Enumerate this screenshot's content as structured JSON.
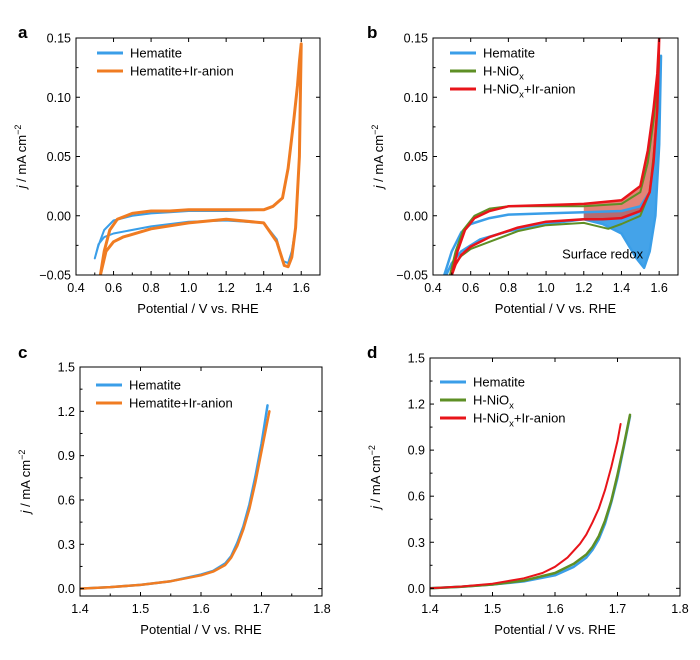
{
  "colors": {
    "hematite": "#3a9ee8",
    "ir": "#f07c22",
    "nio": "#5e8f25",
    "niox_ir": "#e8141a",
    "fill_blue": "#3a9ee8",
    "fill_red": "#d95a4a"
  },
  "chart_data": [
    {
      "panel": "a",
      "type": "line",
      "xlabel": "Potential / V vs. RHE",
      "ylabel_j": "j",
      "ylabel_rest": " / mA cm",
      "ylabel_sup": "−2",
      "xlim": [
        0.4,
        1.7
      ],
      "ylim": [
        -0.05,
        0.15
      ],
      "xticks": [
        "0.4",
        "0.6",
        "0.8",
        "1.0",
        "1.2",
        "1.4",
        "1.6"
      ],
      "yticks": [
        "−0.05",
        "0.00",
        "0.05",
        "0.10",
        "0.15"
      ],
      "legend": [
        {
          "name": "Hematite",
          "sub": "",
          "suffix": ""
        },
        {
          "name": "Hematite+Ir-anion",
          "sub": "",
          "suffix": ""
        }
      ],
      "series": [
        {
          "name": "Hematite",
          "color_key": "hematite",
          "width": 2,
          "x": [
            0.5,
            0.52,
            0.55,
            0.6,
            0.7,
            0.8,
            0.9,
            1.0,
            1.2,
            1.4,
            1.45,
            1.5,
            1.53,
            1.56,
            1.58,
            1.59,
            1.6,
            1.59,
            1.57,
            1.55,
            1.53,
            1.5,
            1.47,
            1.4,
            1.2,
            1.0,
            0.8,
            0.6,
            0.55,
            0.52,
            0.5
          ],
          "y": [
            -0.036,
            -0.025,
            -0.012,
            -0.004,
            0.0,
            0.002,
            0.003,
            0.004,
            0.004,
            0.005,
            0.008,
            0.015,
            0.04,
            0.08,
            0.11,
            0.13,
            0.14,
            0.05,
            -0.01,
            -0.03,
            -0.04,
            -0.038,
            -0.02,
            -0.006,
            -0.004,
            -0.005,
            -0.009,
            -0.015,
            -0.018,
            -0.024,
            -0.036
          ]
        },
        {
          "name": "Hematite+Ir-anion",
          "color_key": "ir",
          "width": 3,
          "x": [
            0.53,
            0.55,
            0.58,
            0.62,
            0.7,
            0.8,
            0.9,
            1.0,
            1.2,
            1.4,
            1.45,
            1.5,
            1.53,
            1.56,
            1.58,
            1.59,
            1.6,
            1.59,
            1.57,
            1.55,
            1.53,
            1.51,
            1.47,
            1.4,
            1.2,
            1.0,
            0.8,
            0.65,
            0.6,
            0.56,
            0.53
          ],
          "y": [
            -0.05,
            -0.03,
            -0.012,
            -0.003,
            0.002,
            0.004,
            0.004,
            0.005,
            0.005,
            0.005,
            0.008,
            0.015,
            0.04,
            0.08,
            0.11,
            0.13,
            0.145,
            0.05,
            -0.01,
            -0.035,
            -0.043,
            -0.042,
            -0.022,
            -0.006,
            -0.003,
            -0.006,
            -0.011,
            -0.018,
            -0.022,
            -0.03,
            -0.05
          ]
        }
      ]
    },
    {
      "panel": "b",
      "type": "line",
      "xlabel": "Potential / V vs. RHE",
      "ylabel_j": "j",
      "ylabel_rest": " / mA cm",
      "ylabel_sup": "−2",
      "xlim": [
        0.4,
        1.7
      ],
      "ylim": [
        -0.05,
        0.15
      ],
      "xticks": [
        "0.4",
        "0.6",
        "0.8",
        "1.0",
        "1.2",
        "1.4",
        "1.6"
      ],
      "yticks": [
        "−0.05",
        "0.00",
        "0.05",
        "0.10",
        "0.15"
      ],
      "annotation": "Surface redox",
      "legend": [
        {
          "name": "Hematite",
          "sub": "",
          "suffix": ""
        },
        {
          "name": "H-NiO",
          "sub": "x",
          "suffix": ""
        },
        {
          "name": "H-NiO",
          "sub": "x",
          "suffix": "+Ir-anion"
        }
      ],
      "series": [
        {
          "name": "Hematite",
          "color_key": "hematite",
          "width": 2.5,
          "x": [
            0.46,
            0.5,
            0.55,
            0.6,
            0.7,
            0.8,
            1.0,
            1.2,
            1.4,
            1.5,
            1.55,
            1.58,
            1.6,
            1.61,
            1.6,
            1.58,
            1.55,
            1.52,
            1.48,
            1.4,
            1.3,
            1.2,
            1.0,
            0.8,
            0.65,
            0.55,
            0.5,
            0.47
          ],
          "y": [
            -0.05,
            -0.03,
            -0.014,
            -0.007,
            -0.002,
            0.001,
            0.002,
            0.003,
            0.004,
            0.008,
            0.02,
            0.06,
            0.1,
            0.135,
            0.06,
            0.0,
            -0.03,
            -0.044,
            -0.036,
            -0.015,
            -0.007,
            -0.003,
            -0.007,
            -0.013,
            -0.02,
            -0.03,
            -0.04,
            -0.05
          ]
        },
        {
          "name": "H-NiOx",
          "color_key": "nio",
          "width": 2,
          "x": [
            0.49,
            0.52,
            0.56,
            0.62,
            0.7,
            0.8,
            1.0,
            1.2,
            1.4,
            1.5,
            1.54,
            1.57,
            1.59,
            1.6,
            1.59,
            1.57,
            1.55,
            1.5,
            1.4,
            1.33,
            1.25,
            1.2,
            1.0,
            0.85,
            0.7,
            0.6,
            0.55,
            0.51,
            0.49
          ],
          "y": [
            -0.05,
            -0.03,
            -0.012,
            0.0,
            0.006,
            0.008,
            0.008,
            0.008,
            0.01,
            0.02,
            0.045,
            0.08,
            0.11,
            0.135,
            0.09,
            0.05,
            0.02,
            0.0,
            -0.007,
            -0.011,
            -0.008,
            -0.006,
            -0.008,
            -0.013,
            -0.022,
            -0.028,
            -0.034,
            -0.042,
            -0.05
          ]
        },
        {
          "name": "H-NiOx+Ir-anion",
          "color_key": "niox_ir",
          "width": 2.5,
          "x": [
            0.5,
            0.53,
            0.57,
            0.62,
            0.7,
            0.8,
            1.0,
            1.2,
            1.4,
            1.5,
            1.54,
            1.57,
            1.59,
            1.6,
            1.59,
            1.57,
            1.55,
            1.5,
            1.4,
            1.3,
            1.2,
            1.0,
            0.85,
            0.7,
            0.6,
            0.55,
            0.52,
            0.5
          ],
          "y": [
            -0.05,
            -0.03,
            -0.012,
            -0.002,
            0.004,
            0.008,
            0.009,
            0.01,
            0.013,
            0.025,
            0.055,
            0.09,
            0.12,
            0.15,
            0.09,
            0.045,
            0.02,
            0.004,
            -0.002,
            -0.003,
            -0.003,
            -0.005,
            -0.01,
            -0.018,
            -0.026,
            -0.033,
            -0.041,
            -0.05
          ]
        }
      ]
    },
    {
      "panel": "c",
      "type": "line",
      "xlabel": "Potential / V vs. RHE",
      "ylabel_j": "j",
      "ylabel_rest": " / mA cm",
      "ylabel_sup": "−2",
      "xlim": [
        1.4,
        1.8
      ],
      "ylim": [
        -0.05,
        1.5
      ],
      "xticks": [
        "1.4",
        "1.5",
        "1.6",
        "1.7",
        "1.8"
      ],
      "yticks": [
        "0.0",
        "0.3",
        "0.6",
        "0.9",
        "1.2",
        "1.5"
      ],
      "legend": [
        {
          "name": "Hematite",
          "sub": "",
          "suffix": ""
        },
        {
          "name": "Hematite+Ir-anion",
          "sub": "",
          "suffix": ""
        }
      ],
      "series": [
        {
          "name": "Hematite",
          "color_key": "hematite",
          "width": 2.5,
          "x": [
            1.4,
            1.45,
            1.5,
            1.55,
            1.6,
            1.62,
            1.64,
            1.65,
            1.66,
            1.67,
            1.68,
            1.69,
            1.7,
            1.71
          ],
          "y": [
            0.0,
            0.01,
            0.025,
            0.05,
            0.095,
            0.12,
            0.17,
            0.22,
            0.31,
            0.42,
            0.57,
            0.76,
            0.98,
            1.24
          ]
        },
        {
          "name": "Hematite+Ir-anion",
          "color_key": "ir",
          "width": 2.5,
          "x": [
            1.4,
            1.45,
            1.5,
            1.55,
            1.6,
            1.62,
            1.64,
            1.65,
            1.66,
            1.67,
            1.68,
            1.69,
            1.7,
            1.713
          ],
          "y": [
            0.0,
            0.01,
            0.025,
            0.05,
            0.09,
            0.115,
            0.16,
            0.21,
            0.29,
            0.4,
            0.54,
            0.72,
            0.93,
            1.2
          ]
        }
      ]
    },
    {
      "panel": "d",
      "type": "line",
      "xlabel": "Potential / V vs. RHE",
      "ylabel_j": "j",
      "ylabel_rest": " / mA cm",
      "ylabel_sup": "−2",
      "xlim": [
        1.4,
        1.8
      ],
      "ylim": [
        -0.05,
        1.5
      ],
      "xticks": [
        "1.4",
        "1.5",
        "1.6",
        "1.7",
        "1.8"
      ],
      "yticks": [
        "0.0",
        "0.3",
        "0.6",
        "0.9",
        "1.2",
        "1.5"
      ],
      "legend": [
        {
          "name": "Hematite",
          "sub": "",
          "suffix": ""
        },
        {
          "name": "H-NiO",
          "sub": "x",
          "suffix": ""
        },
        {
          "name": "H-NiO",
          "sub": "x",
          "suffix": "+Ir-anion"
        }
      ],
      "series": [
        {
          "name": "Hematite",
          "color_key": "hematite",
          "width": 2.5,
          "x": [
            1.4,
            1.45,
            1.5,
            1.55,
            1.6,
            1.63,
            1.65,
            1.66,
            1.67,
            1.68,
            1.69,
            1.7,
            1.71,
            1.72
          ],
          "y": [
            0.0,
            0.01,
            0.025,
            0.045,
            0.085,
            0.14,
            0.2,
            0.25,
            0.32,
            0.42,
            0.56,
            0.72,
            0.92,
            1.12
          ]
        },
        {
          "name": "H-NiOx",
          "color_key": "nio",
          "width": 2.5,
          "x": [
            1.4,
            1.45,
            1.5,
            1.55,
            1.6,
            1.63,
            1.65,
            1.66,
            1.67,
            1.68,
            1.69,
            1.7,
            1.71,
            1.72
          ],
          "y": [
            0.0,
            0.01,
            0.025,
            0.05,
            0.1,
            0.16,
            0.22,
            0.27,
            0.34,
            0.44,
            0.57,
            0.74,
            0.93,
            1.13
          ]
        },
        {
          "name": "H-NiOx+Ir-anion",
          "color_key": "niox_ir",
          "width": 2,
          "x": [
            1.4,
            1.45,
            1.5,
            1.55,
            1.58,
            1.6,
            1.62,
            1.64,
            1.65,
            1.66,
            1.67,
            1.68,
            1.69,
            1.7,
            1.705
          ],
          "y": [
            0.0,
            0.012,
            0.03,
            0.065,
            0.1,
            0.14,
            0.2,
            0.29,
            0.35,
            0.43,
            0.52,
            0.64,
            0.79,
            0.96,
            1.07
          ]
        }
      ]
    }
  ]
}
